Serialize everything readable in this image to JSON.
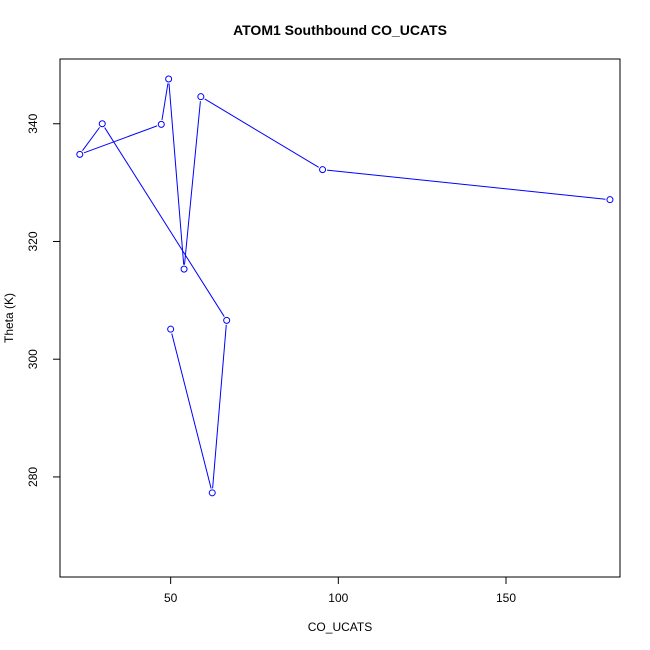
{
  "chart_data": {
    "type": "line",
    "title": "ATOM1 Southbound CO_UCATS",
    "xlabel": "CO_UCATS",
    "ylabel": "Theta (K)",
    "xlim": [
      17,
      184
    ],
    "ylim": [
      263,
      351
    ],
    "x_ticks": [
      50,
      100,
      150
    ],
    "y_ticks": [
      280,
      300,
      320,
      340
    ],
    "markers": "open-circle",
    "grid": false,
    "series": [
      {
        "name": "",
        "color": "#0000ff",
        "points": [
          {
            "x": 50.0,
            "y": 305.1
          },
          {
            "x": 62.4,
            "y": 277.3
          },
          {
            "x": 66.7,
            "y": 306.6
          },
          {
            "x": 29.6,
            "y": 340.0
          },
          {
            "x": 22.9,
            "y": 334.8
          },
          {
            "x": 47.2,
            "y": 339.9
          },
          {
            "x": 49.4,
            "y": 347.6
          },
          {
            "x": 54.0,
            "y": 315.3
          },
          {
            "x": 59.0,
            "y": 344.6
          },
          {
            "x": 95.3,
            "y": 332.2
          },
          {
            "x": 181.0,
            "y": 327.1
          }
        ]
      }
    ]
  }
}
